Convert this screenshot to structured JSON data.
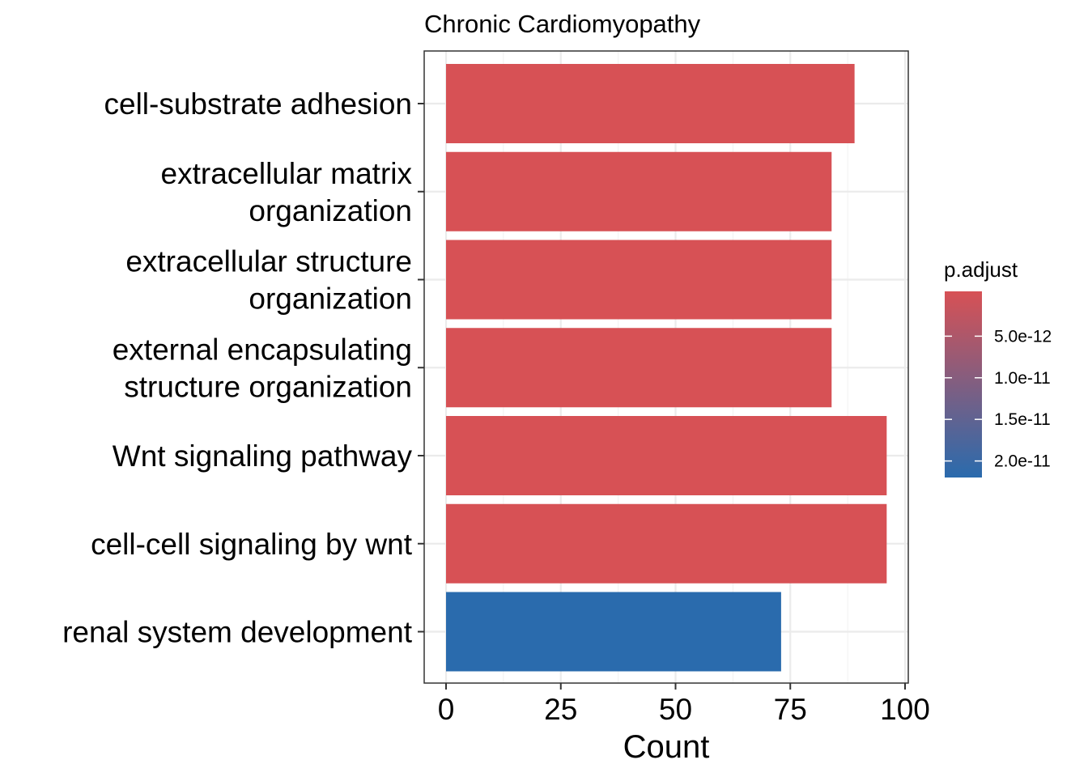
{
  "chart_data": {
    "type": "bar",
    "orientation": "horizontal",
    "title": "Chronic Cardiomyopathy",
    "xlabel": "Count",
    "ylabel": "",
    "xlim": [
      0,
      100
    ],
    "x_ticks": [
      "0",
      "25",
      "50",
      "75",
      "100"
    ],
    "grid": true,
    "categories": [
      [
        "cell-substrate adhesion"
      ],
      [
        "extracellular matrix",
        "organization"
      ],
      [
        "extracellular structure",
        "organization"
      ],
      [
        "external encapsulating",
        "structure organization"
      ],
      [
        "Wnt signaling pathway"
      ],
      [
        "cell-cell signaling by wnt"
      ],
      [
        "renal system development"
      ]
    ],
    "values": [
      89,
      84,
      84,
      84,
      96,
      96,
      73
    ],
    "p_adjust": [
      1e-13,
      1e-13,
      1e-13,
      1e-13,
      1e-13,
      1e-13,
      2.15e-11
    ],
    "legend": {
      "title": "p.adjust",
      "placement": "right",
      "ticks": [
        "5.0e-12",
        "1.0e-11",
        "1.5e-11",
        "2.0e-11"
      ],
      "tick_values": [
        5e-12,
        1e-11,
        1.5e-11,
        2e-11
      ],
      "range": [
        1e-13,
        2.15e-11
      ],
      "low_color": "#d75155",
      "high_color": "#2a6bad"
    }
  }
}
